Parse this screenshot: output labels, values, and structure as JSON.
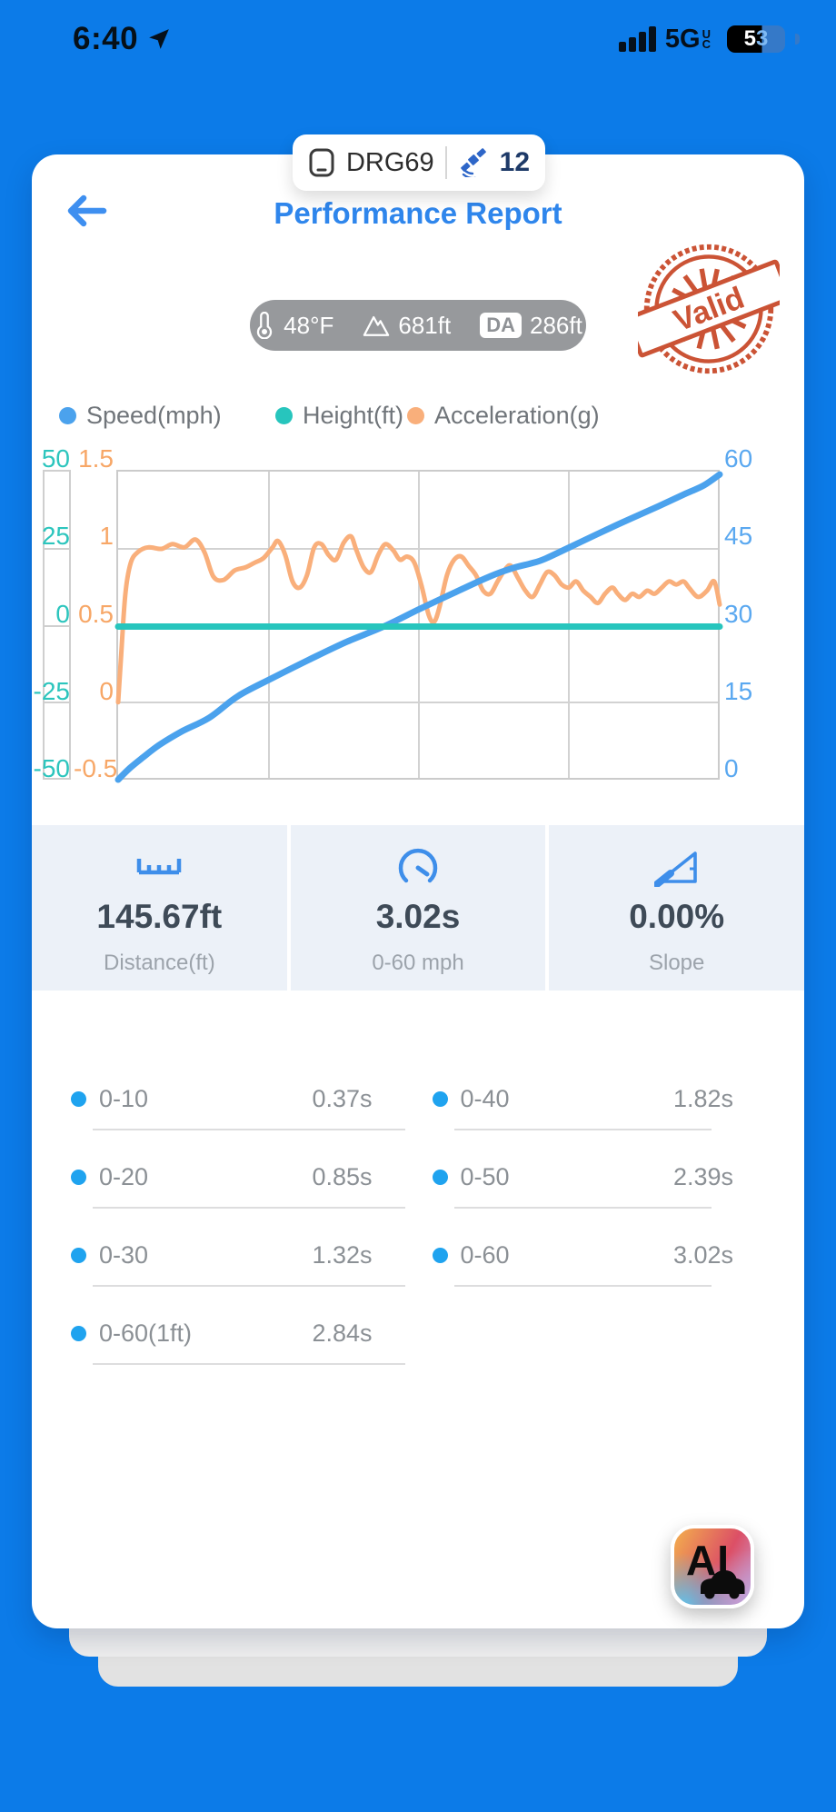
{
  "status_bar": {
    "time": "6:40",
    "network": "5G",
    "network_sub": "UC",
    "battery": "53"
  },
  "device_pill": {
    "name": "DRG69",
    "satellite_count": "12"
  },
  "header": {
    "title": "Performance Report",
    "stamp": "Valid"
  },
  "conditions": {
    "temperature": "48°F",
    "elevation": "681ft",
    "da_badge": "DA",
    "density_altitude": "286ft"
  },
  "legend": {
    "items": [
      {
        "label": "Speed(mph)",
        "color": "#4BA2ED"
      },
      {
        "label": "Height(ft)",
        "color": "#27C5BD"
      },
      {
        "label": "Acceleration(g)",
        "color": "#F9AF7B"
      }
    ]
  },
  "chart_data": {
    "type": "line",
    "title": "",
    "x_axis": {
      "label": "",
      "tick_labels": []
    },
    "grid": {
      "h_divisions": 4,
      "v_divisions": 4,
      "on": true
    },
    "y_axes": [
      {
        "id": "height",
        "title": "Height(ft)",
        "side": "left",
        "color": "#2CC5BD",
        "ticks": [
          "50",
          "25",
          "0",
          "-25",
          "-50"
        ],
        "range": [
          -50,
          50
        ]
      },
      {
        "id": "accel",
        "title": "Acceleration(g)",
        "side": "left",
        "color": "#F7A767",
        "ticks": [
          "1.5",
          "1",
          "0.5",
          "0",
          "-0.5"
        ],
        "range": [
          -0.5,
          1.5
        ]
      },
      {
        "id": "speed",
        "title": "Speed(mph)",
        "side": "right",
        "color": "#5AA8F0",
        "ticks": [
          "60",
          "45",
          "30",
          "15",
          "0"
        ],
        "range": [
          0,
          60
        ]
      }
    ],
    "series": [
      {
        "name": "Acceleration(g)",
        "axis": "accel",
        "color": "#F9AF7B",
        "width": 5,
        "points": [
          [
            0.003,
            0
          ],
          [
            0.008,
            0.3
          ],
          [
            0.015,
            0.7
          ],
          [
            0.024,
            0.9
          ],
          [
            0.036,
            0.97
          ],
          [
            0.053,
            1.0
          ],
          [
            0.075,
            0.99
          ],
          [
            0.093,
            1.02
          ],
          [
            0.113,
            1.0
          ],
          [
            0.131,
            1.05
          ],
          [
            0.146,
            0.97
          ],
          [
            0.161,
            0.81
          ],
          [
            0.178,
            0.79
          ],
          [
            0.196,
            0.85
          ],
          [
            0.214,
            0.87
          ],
          [
            0.229,
            0.9
          ],
          [
            0.244,
            0.93
          ],
          [
            0.259,
            1.0
          ],
          [
            0.268,
            1.04
          ],
          [
            0.28,
            0.95
          ],
          [
            0.292,
            0.78
          ],
          [
            0.304,
            0.74
          ],
          [
            0.316,
            0.82
          ],
          [
            0.328,
            1.0
          ],
          [
            0.34,
            1.02
          ],
          [
            0.352,
            0.95
          ],
          [
            0.364,
            0.92
          ],
          [
            0.377,
            1.03
          ],
          [
            0.389,
            1.07
          ],
          [
            0.398,
            0.98
          ],
          [
            0.41,
            0.87
          ],
          [
            0.422,
            0.84
          ],
          [
            0.434,
            0.95
          ],
          [
            0.446,
            1.02
          ],
          [
            0.459,
            0.98
          ],
          [
            0.47,
            0.92
          ],
          [
            0.482,
            0.94
          ],
          [
            0.494,
            0.9
          ],
          [
            0.506,
            0.75
          ],
          [
            0.518,
            0.56
          ],
          [
            0.527,
            0.52
          ],
          [
            0.536,
            0.62
          ],
          [
            0.548,
            0.82
          ],
          [
            0.56,
            0.92
          ],
          [
            0.572,
            0.94
          ],
          [
            0.584,
            0.88
          ],
          [
            0.596,
            0.82
          ],
          [
            0.608,
            0.72
          ],
          [
            0.62,
            0.7
          ],
          [
            0.632,
            0.78
          ],
          [
            0.645,
            0.86
          ],
          [
            0.654,
            0.88
          ],
          [
            0.666,
            0.8
          ],
          [
            0.678,
            0.72
          ],
          [
            0.69,
            0.68
          ],
          [
            0.702,
            0.76
          ],
          [
            0.714,
            0.84
          ],
          [
            0.726,
            0.82
          ],
          [
            0.738,
            0.76
          ],
          [
            0.75,
            0.74
          ],
          [
            0.762,
            0.78
          ],
          [
            0.774,
            0.72
          ],
          [
            0.786,
            0.68
          ],
          [
            0.798,
            0.64
          ],
          [
            0.81,
            0.7
          ],
          [
            0.822,
            0.74
          ],
          [
            0.831,
            0.7
          ],
          [
            0.843,
            0.66
          ],
          [
            0.855,
            0.7
          ],
          [
            0.867,
            0.68
          ],
          [
            0.88,
            0.72
          ],
          [
            0.892,
            0.7
          ],
          [
            0.904,
            0.74
          ],
          [
            0.916,
            0.78
          ],
          [
            0.928,
            0.76
          ],
          [
            0.94,
            0.78
          ],
          [
            0.949,
            0.74
          ],
          [
            0.964,
            0.68
          ],
          [
            0.979,
            0.72
          ],
          [
            0.991,
            0.78
          ],
          [
            1.0,
            0.63
          ]
        ]
      },
      {
        "name": "Speed(mph)",
        "axis": "speed",
        "color": "#4BA2ED",
        "width": 7,
        "points": [
          [
            0.003,
            0
          ],
          [
            0.023,
            2.3
          ],
          [
            0.045,
            4.4
          ],
          [
            0.071,
            6.7
          ],
          [
            0.108,
            9.3
          ],
          [
            0.154,
            12.0
          ],
          [
            0.202,
            16.2
          ],
          [
            0.259,
            19.7
          ],
          [
            0.319,
            23.2
          ],
          [
            0.38,
            26.6
          ],
          [
            0.444,
            29.7
          ],
          [
            0.5,
            32.9
          ],
          [
            0.56,
            36.2
          ],
          [
            0.62,
            39.4
          ],
          [
            0.658,
            41.0
          ],
          [
            0.688,
            41.9
          ],
          [
            0.711,
            42.8
          ],
          [
            0.771,
            46.1
          ],
          [
            0.831,
            49.4
          ],
          [
            0.892,
            52.6
          ],
          [
            0.944,
            55.4
          ],
          [
            0.974,
            57.0
          ],
          [
            1.0,
            59.1
          ]
        ]
      },
      {
        "name": "Height(ft)",
        "axis": "height",
        "color": "#27C5BD",
        "width": 7,
        "points": [
          [
            0.003,
            -0.6
          ],
          [
            1.0,
            -0.6
          ]
        ]
      }
    ]
  },
  "stats": {
    "distance": {
      "value": "145.67ft",
      "label": "Distance(ft)"
    },
    "zero_to_sixty": {
      "value": "3.02s",
      "label": "0-60 mph"
    },
    "slope": {
      "value": "0.00%",
      "label": "Slope"
    }
  },
  "table": {
    "rows": [
      {
        "cells": [
          {
            "label": "0-10",
            "value": "0.37s"
          },
          {
            "label": "0-40",
            "value": "1.82s"
          }
        ]
      },
      {
        "cells": [
          {
            "label": "0-20",
            "value": "0.85s"
          },
          {
            "label": "0-50",
            "value": "2.39s"
          }
        ]
      },
      {
        "cells": [
          {
            "label": "0-30",
            "value": "1.32s"
          },
          {
            "label": "0-60",
            "value": "3.02s"
          }
        ]
      },
      {
        "cells": [
          {
            "label": "0-60(1ft)",
            "value": "2.84s"
          }
        ]
      }
    ]
  },
  "ai_button": {
    "label": "AI"
  }
}
